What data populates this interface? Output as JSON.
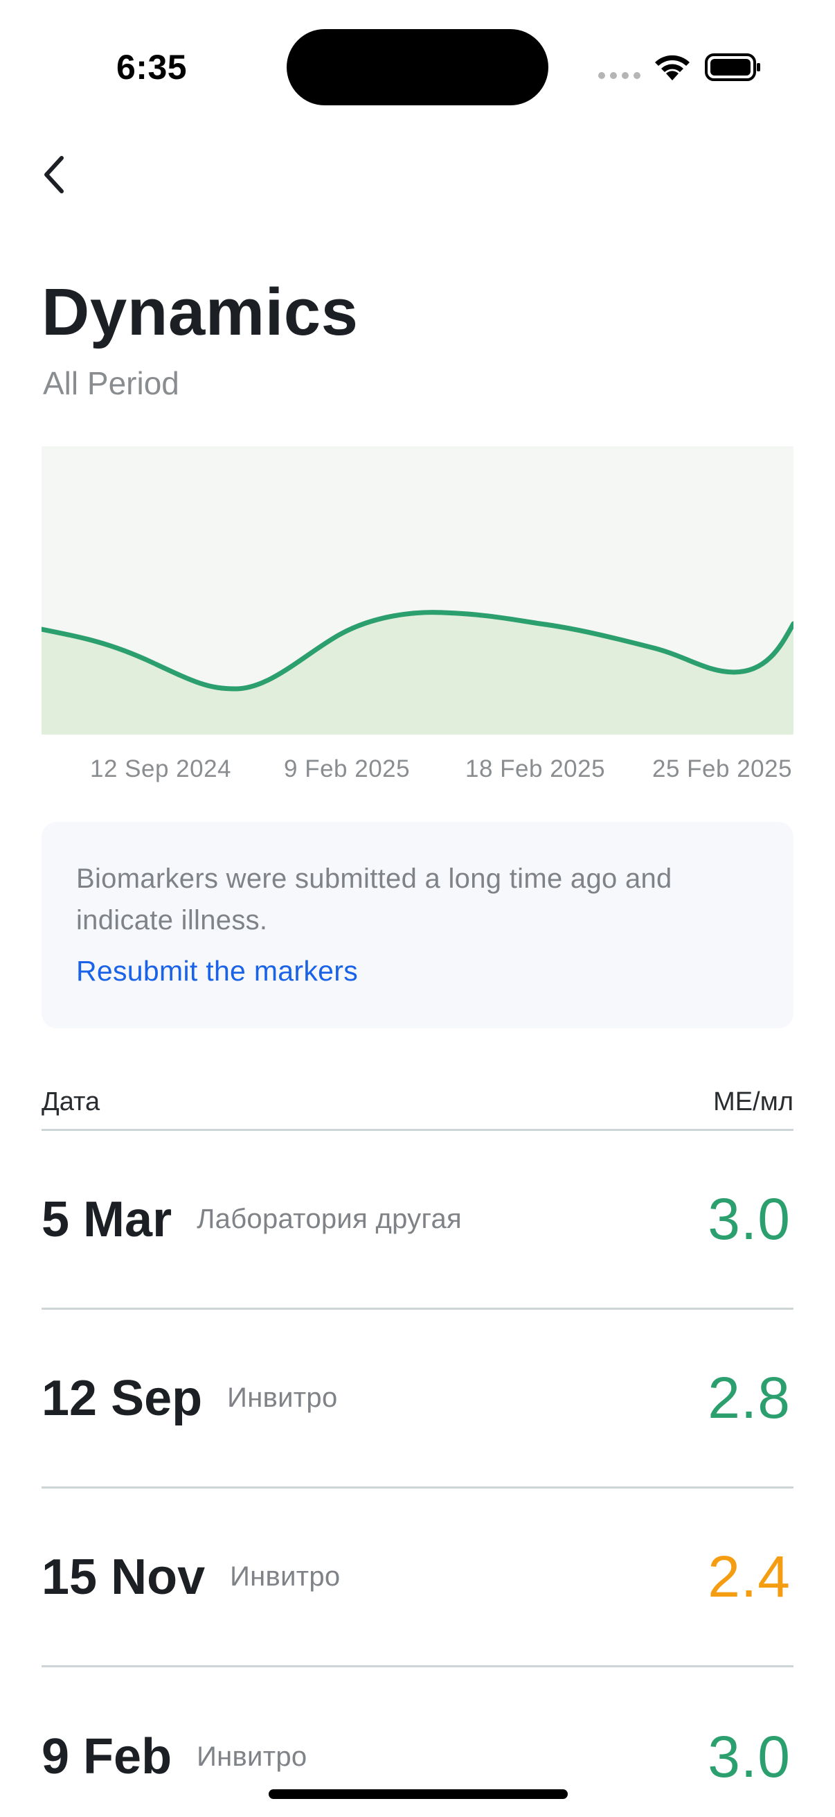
{
  "status_bar": {
    "time": "6:35"
  },
  "header": {
    "back_icon": "chevron-left-icon",
    "title": "Dynamics",
    "subtitle": "All Period"
  },
  "chart": {
    "x_ticks": [
      "12 Sep 2024",
      "9 Feb 2025",
      "18 Feb 2025",
      "25 Feb 2025"
    ],
    "line_color": "#2c9f6e",
    "fill_color": "#e1eedb"
  },
  "info_card": {
    "message": "Biomarkers were submitted a long time ago and indicate illness.",
    "link": "Resubmit the markers"
  },
  "table": {
    "col_date": "Дата",
    "col_unit": "МЕ/мл",
    "rows": [
      {
        "date": "5 Mar",
        "lab": "Лаборатория другая",
        "value": "3.0",
        "color": "#2c9f6e"
      },
      {
        "date": "12 Sep",
        "lab": "Инвитро",
        "value": "2.8",
        "color": "#2c9f6e"
      },
      {
        "date": "15 Nov",
        "lab": "Инвитро",
        "value": "2.4",
        "color": "#f59d12"
      },
      {
        "date": "9 Feb",
        "lab": "Инвитро",
        "value": "3.0",
        "color": "#2c9f6e"
      }
    ]
  },
  "colors": {
    "good": "#2c9f6e",
    "warning": "#f59d12",
    "link": "#1a63e8"
  }
}
